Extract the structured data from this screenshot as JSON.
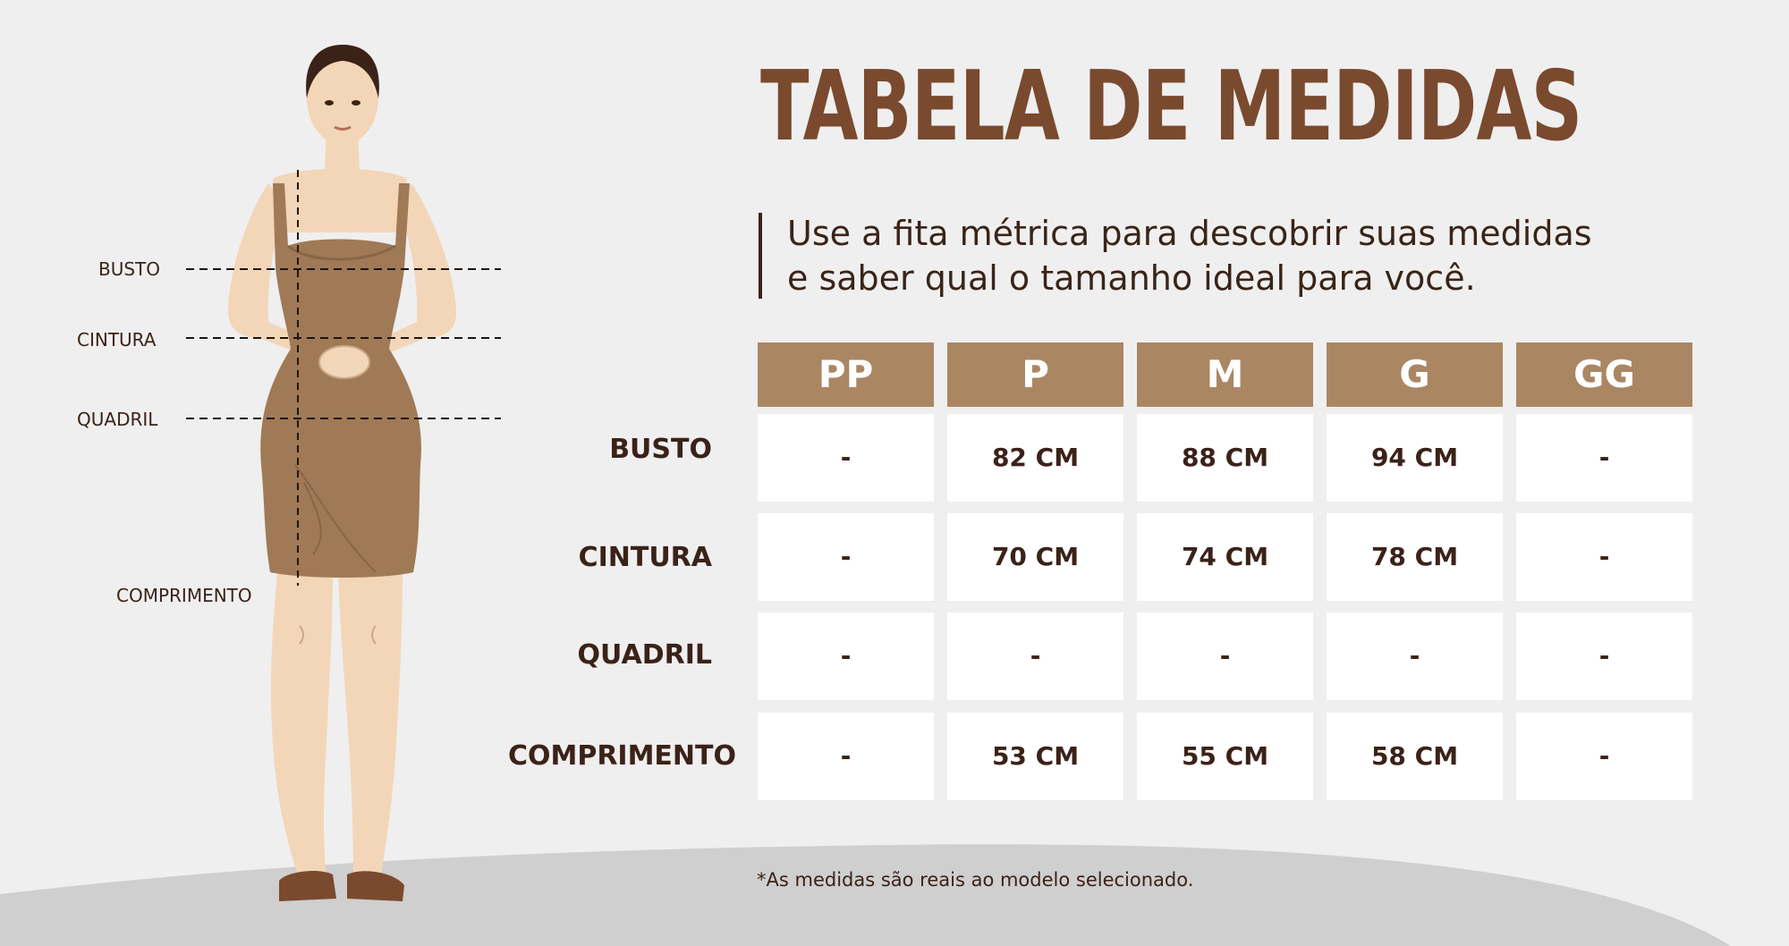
{
  "header": {
    "title": "TABELA DE MEDIDAS",
    "intro_line_1": "Use a fita métrica para descobrir suas medidas",
    "intro_line_2": "e saber qual o tamanho ideal para você."
  },
  "figure": {
    "labels": [
      "BUSTO",
      "CINTURA",
      "QUADRIL",
      "COMPRIMENTO"
    ]
  },
  "table": {
    "columns": [
      "PP",
      "P",
      "M",
      "G",
      "GG"
    ],
    "rows": [
      {
        "label": "BUSTO",
        "values": [
          "-",
          "82 CM",
          "88 CM",
          "94 CM",
          "-"
        ]
      },
      {
        "label": "CINTURA",
        "values": [
          "-",
          "70 CM",
          "74 CM",
          "78 CM",
          "-"
        ]
      },
      {
        "label": "QUADRIL",
        "values": [
          "-",
          "-",
          "-",
          "-",
          "-"
        ]
      },
      {
        "label": "COMPRIMENTO",
        "values": [
          "-",
          "53 CM",
          "55 CM",
          "58 CM",
          "-"
        ]
      }
    ]
  },
  "footnote": "*As medidas são reais ao modelo selecionado.",
  "colors": {
    "background": "#efefef",
    "ground": "#cfcfcf",
    "title": "#7a4a2e",
    "header_fill": "#ab8663",
    "cell_fill": "#ffffff",
    "text_dark": "#3b2218",
    "dress": "#a07a57",
    "skin": "#f3d6b8"
  }
}
